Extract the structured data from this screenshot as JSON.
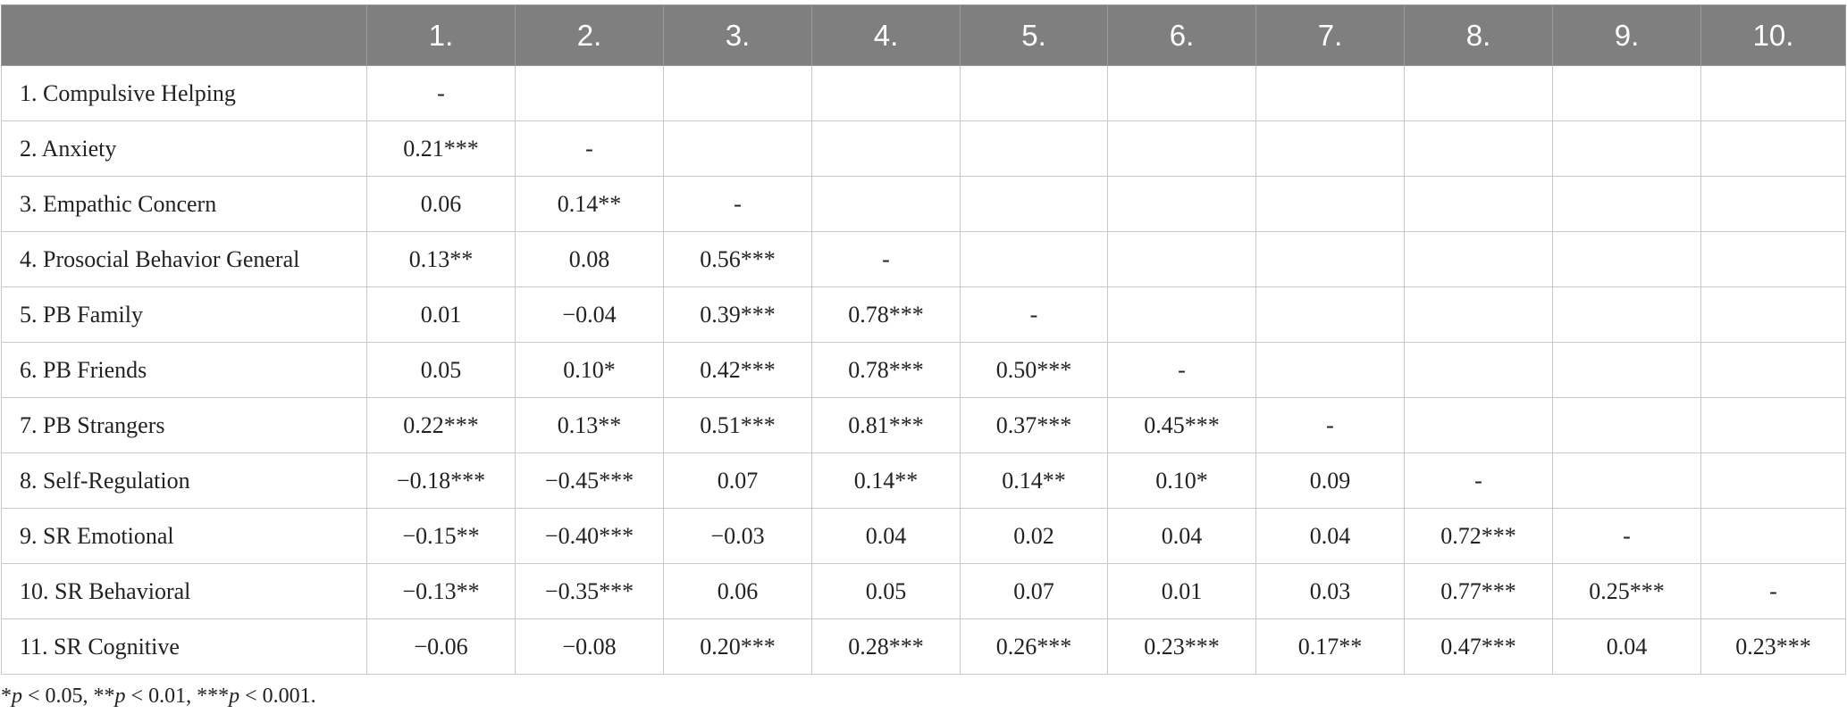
{
  "table": {
    "columns": [
      "",
      "1.",
      "2.",
      "3.",
      "4.",
      "5.",
      "6.",
      "7.",
      "8.",
      "9.",
      "10."
    ],
    "rows": [
      {
        "label": "1. Compulsive Helping",
        "values": [
          "-",
          "",
          "",
          "",
          "",
          "",
          "",
          "",
          "",
          ""
        ]
      },
      {
        "label": "2.  Anxiety",
        "values": [
          "0.21***",
          "-",
          "",
          "",
          "",
          "",
          "",
          "",
          "",
          ""
        ]
      },
      {
        "label": "3.  Empathic Concern",
        "values": [
          "0.06",
          "0.14**",
          "-",
          "",
          "",
          "",
          "",
          "",
          "",
          ""
        ]
      },
      {
        "label": "4.  Prosocial Behavior General",
        "values": [
          "0.13**",
          "0.08",
          "0.56***",
          "-",
          "",
          "",
          "",
          "",
          "",
          ""
        ]
      },
      {
        "label": "5.  PB Family",
        "values": [
          "0.01",
          "−0.04",
          "0.39***",
          "0.78***",
          "-",
          "",
          "",
          "",
          "",
          ""
        ]
      },
      {
        "label": "6.  PB Friends",
        "values": [
          "0.05",
          "0.10*",
          "0.42***",
          "0.78***",
          "0.50***",
          "-",
          "",
          "",
          "",
          ""
        ]
      },
      {
        "label": "7.  PB Strangers",
        "values": [
          "0.22***",
          "0.13**",
          "0.51***",
          "0.81***",
          "0.37***",
          "0.45***",
          "-",
          "",
          "",
          ""
        ]
      },
      {
        "label": "8.  Self-Regulation",
        "values": [
          "−0.18***",
          "−0.45***",
          "0.07",
          "0.14**",
          "0.14**",
          "0.10*",
          "0.09",
          "-",
          "",
          ""
        ]
      },
      {
        "label": "9.  SR Emotional",
        "values": [
          "−0.15**",
          "−0.40***",
          "−0.03",
          "0.04",
          "0.02",
          "0.04",
          "0.04",
          "0.72***",
          "-",
          ""
        ]
      },
      {
        "label": "10. SR Behavioral",
        "values": [
          "−0.13**",
          "−0.35***",
          "0.06",
          "0.05",
          "0.07",
          "0.01",
          "0.03",
          "0.77***",
          "0.25***",
          "-"
        ]
      },
      {
        "label": "11. SR Cognitive",
        "values": [
          "−0.06",
          "−0.08",
          "0.20***",
          "0.28***",
          "0.26***",
          "0.23***",
          "0.17**",
          "0.47***",
          "0.04",
          "0.23***"
        ]
      }
    ]
  },
  "footnote": [
    {
      "t": "*",
      "i": false
    },
    {
      "t": "p",
      "i": true
    },
    {
      "t": " < 0.05, **",
      "i": false
    },
    {
      "t": "p",
      "i": true
    },
    {
      "t": " < 0.01, ***",
      "i": false
    },
    {
      "t": "p",
      "i": true
    },
    {
      "t": " < 0.001.",
      "i": false
    }
  ]
}
